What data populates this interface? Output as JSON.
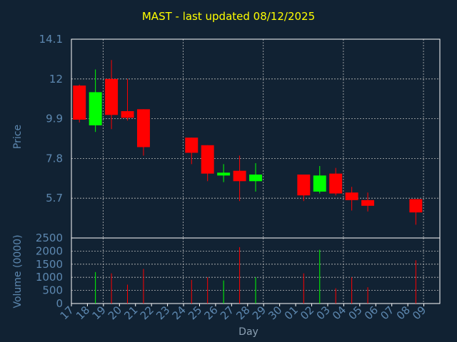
{
  "chart_data": {
    "type": "candlestick",
    "title": "MAST - last updated 08/12/2025",
    "xlabel": "Day",
    "price_ylabel": "Price",
    "volume_ylabel": "Volume (0000)",
    "price_ylim": [
      3.6,
      14.1
    ],
    "price_ticks": [
      14.1,
      12,
      9.9,
      7.8,
      5.7
    ],
    "volume_ylim": [
      0,
      2500
    ],
    "volume_ticks": [
      2500,
      2000,
      1500,
      1000,
      500,
      0
    ],
    "x_tick_labels": [
      "17",
      "18",
      "19",
      "20",
      "21",
      "22",
      "23",
      "24",
      "25",
      "26",
      "27",
      "28",
      "29",
      "30",
      "01",
      "02",
      "03",
      "04",
      "05",
      "06",
      "07",
      "08",
      "09"
    ],
    "grid": true,
    "colors": {
      "up": "#00ff00",
      "down": "#ff0000",
      "background": "#112233",
      "title": "#ffff00",
      "axis": "#ffffff",
      "grid": "#bbbbbb",
      "tick_label": "#5d88b0"
    },
    "candles": [
      {
        "day": "17",
        "open": 11.65,
        "high": 11.7,
        "low": 9.7,
        "close": 9.85
      },
      {
        "day": "18",
        "open": 9.55,
        "high": 12.5,
        "low": 9.2,
        "close": 11.3
      },
      {
        "day": "19",
        "open": 12.0,
        "high": 13.0,
        "low": 9.35,
        "close": 10.1
      },
      {
        "day": "20",
        "open": 10.3,
        "high": 12.0,
        "low": 9.8,
        "close": 9.95
      },
      {
        "day": "21",
        "open": 10.4,
        "high": 10.4,
        "low": 7.95,
        "close": 8.4
      },
      {
        "day": "24",
        "open": 8.9,
        "high": 8.9,
        "low": 7.5,
        "close": 8.1
      },
      {
        "day": "25",
        "open": 8.5,
        "high": 8.5,
        "low": 6.6,
        "close": 7.0
      },
      {
        "day": "26",
        "open": 6.9,
        "high": 7.5,
        "low": 6.55,
        "close": 7.05
      },
      {
        "day": "27",
        "open": 7.15,
        "high": 7.95,
        "low": 5.55,
        "close": 6.6
      },
      {
        "day": "28",
        "open": 6.6,
        "high": 7.55,
        "low": 6.05,
        "close": 6.95
      },
      {
        "day": "01",
        "open": 6.95,
        "high": 6.95,
        "low": 5.55,
        "close": 5.85
      },
      {
        "day": "02",
        "open": 6.05,
        "high": 7.4,
        "low": 5.95,
        "close": 6.9
      },
      {
        "day": "03",
        "open": 7.0,
        "high": 7.3,
        "low": 5.85,
        "close": 5.95
      },
      {
        "day": "04",
        "open": 6.0,
        "high": 6.3,
        "low": 5.05,
        "close": 5.6
      },
      {
        "day": "05",
        "open": 5.6,
        "high": 6.0,
        "low": 5.0,
        "close": 5.3
      },
      {
        "day": "08",
        "open": 5.65,
        "high": 5.65,
        "low": 4.3,
        "close": 4.95
      }
    ],
    "volume": [
      {
        "day": "17",
        "value": 0,
        "dir": "down"
      },
      {
        "day": "18",
        "value": 1200,
        "dir": "up"
      },
      {
        "day": "19",
        "value": 1150,
        "dir": "down"
      },
      {
        "day": "20",
        "value": 720,
        "dir": "down"
      },
      {
        "day": "21",
        "value": 1320,
        "dir": "down"
      },
      {
        "day": "24",
        "value": 900,
        "dir": "down"
      },
      {
        "day": "25",
        "value": 1000,
        "dir": "down"
      },
      {
        "day": "26",
        "value": 880,
        "dir": "up"
      },
      {
        "day": "27",
        "value": 2150,
        "dir": "down"
      },
      {
        "day": "28",
        "value": 1000,
        "dir": "up"
      },
      {
        "day": "01",
        "value": 1150,
        "dir": "down"
      },
      {
        "day": "02",
        "value": 2050,
        "dir": "up"
      },
      {
        "day": "03",
        "value": 580,
        "dir": "down"
      },
      {
        "day": "04",
        "value": 1000,
        "dir": "down"
      },
      {
        "day": "05",
        "value": 620,
        "dir": "down"
      },
      {
        "day": "08",
        "value": 1650,
        "dir": "down"
      }
    ]
  }
}
